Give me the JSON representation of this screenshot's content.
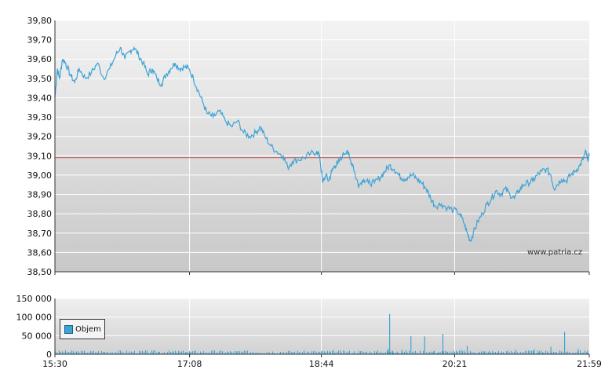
{
  "chart_data": [
    {
      "type": "line",
      "title": "",
      "xlabel": "",
      "ylabel": "",
      "ylim": [
        38.5,
        39.8
      ],
      "yticks": [
        "39,80",
        "39,70",
        "39,60",
        "39,50",
        "39,40",
        "39,30",
        "39,20",
        "39,10",
        "39,00",
        "38,90",
        "38,80",
        "38,70",
        "38,60",
        "38,50"
      ],
      "xticks": [
        "15:30",
        "17:08",
        "18:44",
        "20:21",
        "21:59"
      ],
      "reference_line": 39.09,
      "grid": true,
      "series": [
        {
          "color": "#3fa3d6",
          "points": [
            [
              0,
              39.4
            ],
            [
              0.8,
              39.55
            ],
            [
              1.5,
              39.5
            ],
            [
              2.5,
              39.6
            ],
            [
              3.5,
              39.58
            ],
            [
              5,
              39.52
            ],
            [
              6.5,
              39.48
            ],
            [
              8,
              39.55
            ],
            [
              10,
              39.5
            ],
            [
              12,
              39.53
            ],
            [
              14,
              39.58
            ],
            [
              16,
              39.5
            ],
            [
              18,
              39.55
            ],
            [
              20,
              39.62
            ],
            [
              21.5,
              39.66
            ],
            [
              23,
              39.6
            ],
            [
              24.5,
              39.64
            ],
            [
              26,
              39.66
            ],
            [
              27.5,
              39.62
            ],
            [
              29,
              39.58
            ],
            [
              30.5,
              39.52
            ],
            [
              32,
              39.55
            ],
            [
              33.5,
              39.5
            ],
            [
              35,
              39.47
            ],
            [
              36.5,
              39.52
            ],
            [
              38,
              39.55
            ],
            [
              39.5,
              39.58
            ],
            [
              41,
              39.55
            ],
            [
              42.5,
              39.56
            ],
            [
              44,
              39.55
            ],
            [
              45.5,
              39.5
            ],
            [
              47,
              39.44
            ],
            [
              48.5,
              39.38
            ],
            [
              50,
              39.32
            ],
            [
              52,
              39.3
            ],
            [
              54,
              39.33
            ],
            [
              56,
              39.28
            ],
            [
              58,
              39.25
            ],
            [
              60,
              39.28
            ],
            [
              62,
              39.22
            ],
            [
              64,
              39.2
            ],
            [
              66,
              39.22
            ],
            [
              67.5,
              39.25
            ],
            [
              69,
              39.2
            ],
            [
              71,
              39.15
            ],
            [
              73,
              39.12
            ],
            [
              75,
              39.1
            ],
            [
              76.5,
              39.04
            ],
            [
              78,
              39.07
            ],
            [
              80,
              39.08
            ],
            [
              82,
              39.09
            ],
            [
              84,
              39.11
            ],
            [
              86,
              39.12
            ],
            [
              87,
              39.1
            ],
            [
              88,
              38.96
            ],
            [
              89,
              39.0
            ],
            [
              90,
              38.97
            ],
            [
              91,
              39.02
            ],
            [
              92,
              39.05
            ],
            [
              93,
              39.06
            ],
            [
              94.5,
              39.1
            ],
            [
              96,
              39.13
            ],
            [
              97,
              39.08
            ],
            [
              98,
              39.05
            ],
            [
              99,
              38.98
            ],
            [
              100,
              38.95
            ],
            [
              101.5,
              38.98
            ],
            [
              103,
              38.96
            ],
            [
              105,
              38.96
            ],
            [
              107,
              38.99
            ],
            [
              108.5,
              39.02
            ],
            [
              110,
              39.05
            ],
            [
              111.5,
              39.03
            ],
            [
              113,
              39.0
            ],
            [
              114.5,
              38.98
            ],
            [
              116,
              38.99
            ],
            [
              117.5,
              39.0
            ],
            [
              119,
              38.98
            ],
            [
              120.5,
              38.96
            ],
            [
              122,
              38.93
            ],
            [
              123.5,
              38.88
            ],
            [
              125,
              38.84
            ],
            [
              127,
              38.85
            ],
            [
              129,
              38.83
            ],
            [
              131,
              38.82
            ],
            [
              133,
              38.8
            ],
            [
              134.5,
              38.75
            ],
            [
              135.5,
              38.7
            ],
            [
              136.5,
              38.66
            ],
            [
              137.5,
              38.7
            ],
            [
              139,
              38.76
            ],
            [
              140.5,
              38.8
            ],
            [
              142,
              38.85
            ],
            [
              143.5,
              38.88
            ],
            [
              145,
              38.92
            ],
            [
              146.5,
              38.9
            ],
            [
              148,
              38.93
            ],
            [
              149.5,
              38.9
            ],
            [
              151,
              38.88
            ],
            [
              152.5,
              38.92
            ],
            [
              154,
              38.95
            ],
            [
              155.5,
              38.96
            ],
            [
              157,
              38.97
            ],
            [
              158.5,
              39.0
            ],
            [
              160,
              39.02
            ],
            [
              161.5,
              39.03
            ],
            [
              163,
              39.0
            ],
            [
              164,
              38.93
            ],
            [
              165,
              38.95
            ],
            [
              166.5,
              38.98
            ],
            [
              168,
              38.97
            ],
            [
              169.5,
              39.0
            ],
            [
              171,
              39.02
            ],
            [
              172.5,
              39.05
            ],
            [
              173.5,
              39.08
            ],
            [
              174.5,
              39.12
            ],
            [
              175,
              39.08
            ],
            [
              175.6,
              39.1
            ]
          ]
        }
      ]
    },
    {
      "type": "bar",
      "title": "",
      "ylim": [
        0,
        150000
      ],
      "yticks": [
        "150 000",
        "100 000",
        "50 000",
        "0"
      ],
      "xticks": [
        "15:30",
        "17:08",
        "18:44",
        "20:21",
        "21:59"
      ],
      "legend": "Objem",
      "legend_position": "left",
      "grid": true,
      "series": [
        {
          "name": "Objem",
          "color": "#3fa3d6",
          "points": [
            [
              0,
              9000
            ],
            [
              1.5,
              7000
            ],
            [
              3,
              5000
            ],
            [
              4.5,
              6000
            ],
            [
              6,
              4000
            ],
            [
              8,
              3000
            ],
            [
              10,
              3500
            ],
            [
              12,
              2500
            ],
            [
              14,
              3000
            ],
            [
              16,
              4000
            ],
            [
              18,
              2000
            ],
            [
              20,
              3000
            ],
            [
              22,
              4500
            ],
            [
              24,
              2500
            ],
            [
              26,
              3000
            ],
            [
              28,
              2000
            ],
            [
              30,
              2500
            ],
            [
              32,
              4000
            ],
            [
              34,
              6500
            ],
            [
              35.5,
              3000
            ],
            [
              37,
              5000
            ],
            [
              38.5,
              2500
            ],
            [
              40,
              3500
            ],
            [
              41.5,
              2000
            ],
            [
              43,
              6000
            ],
            [
              44.5,
              2500
            ],
            [
              46,
              3000
            ],
            [
              48,
              2500
            ],
            [
              50,
              2000
            ],
            [
              52,
              3500
            ],
            [
              54,
              3000
            ],
            [
              56,
              2500
            ],
            [
              58,
              2000
            ],
            [
              60,
              3000
            ],
            [
              62,
              2500
            ],
            [
              64,
              2000
            ],
            [
              66,
              3000
            ],
            [
              68,
              2500
            ],
            [
              70,
              2000
            ],
            [
              72,
              3500
            ],
            [
              74,
              3000
            ],
            [
              76,
              2500
            ],
            [
              78,
              3000
            ],
            [
              80,
              2000
            ],
            [
              82,
              3500
            ],
            [
              84,
              2500
            ],
            [
              86,
              3000
            ],
            [
              87.5,
              4500
            ],
            [
              89,
              3000
            ],
            [
              90.5,
              2500
            ],
            [
              92,
              4000
            ],
            [
              94,
              3000
            ],
            [
              96,
              2500
            ],
            [
              98,
              2000
            ],
            [
              100,
              3000
            ],
            [
              102,
              2500
            ],
            [
              104,
              3500
            ],
            [
              106,
              4000
            ],
            [
              108,
              2500
            ],
            [
              109.5,
              15000
            ],
            [
              110,
              108000
            ],
            [
              111,
              9000
            ],
            [
              112.5,
              7000
            ],
            [
              114,
              12000
            ],
            [
              115.5,
              5000
            ],
            [
              117,
              49000
            ],
            [
              118.5,
              6000
            ],
            [
              120,
              4000
            ],
            [
              121.5,
              48000
            ],
            [
              123,
              5000
            ],
            [
              124.5,
              8000
            ],
            [
              126,
              4500
            ],
            [
              127.5,
              55000
            ],
            [
              129,
              6000
            ],
            [
              130.5,
              4000
            ],
            [
              132,
              5000
            ],
            [
              133.5,
              12000
            ],
            [
              134.5,
              6000
            ],
            [
              135.5,
              22000
            ],
            [
              136.5,
              4000
            ],
            [
              138,
              5000
            ],
            [
              139.5,
              3500
            ],
            [
              141,
              4500
            ],
            [
              142.5,
              5000
            ],
            [
              144,
              3000
            ],
            [
              145.5,
              4000
            ],
            [
              147,
              2500
            ],
            [
              148.5,
              3500
            ],
            [
              150,
              3000
            ],
            [
              151.5,
              12000
            ],
            [
              153,
              3500
            ],
            [
              154.5,
              4000
            ],
            [
              156,
              3000
            ],
            [
              157.5,
              13000
            ],
            [
              159,
              4000
            ],
            [
              160.5,
              3500
            ],
            [
              162,
              4500
            ],
            [
              163,
              20000
            ],
            [
              164.5,
              3000
            ],
            [
              166,
              3500
            ],
            [
              167.5,
              60000
            ],
            [
              169,
              4000
            ],
            [
              170.5,
              3000
            ],
            [
              172,
              14000
            ],
            [
              173.5,
              4000
            ],
            [
              175,
              9000
            ]
          ]
        }
      ]
    }
  ],
  "watermark": "www.patria.cz"
}
